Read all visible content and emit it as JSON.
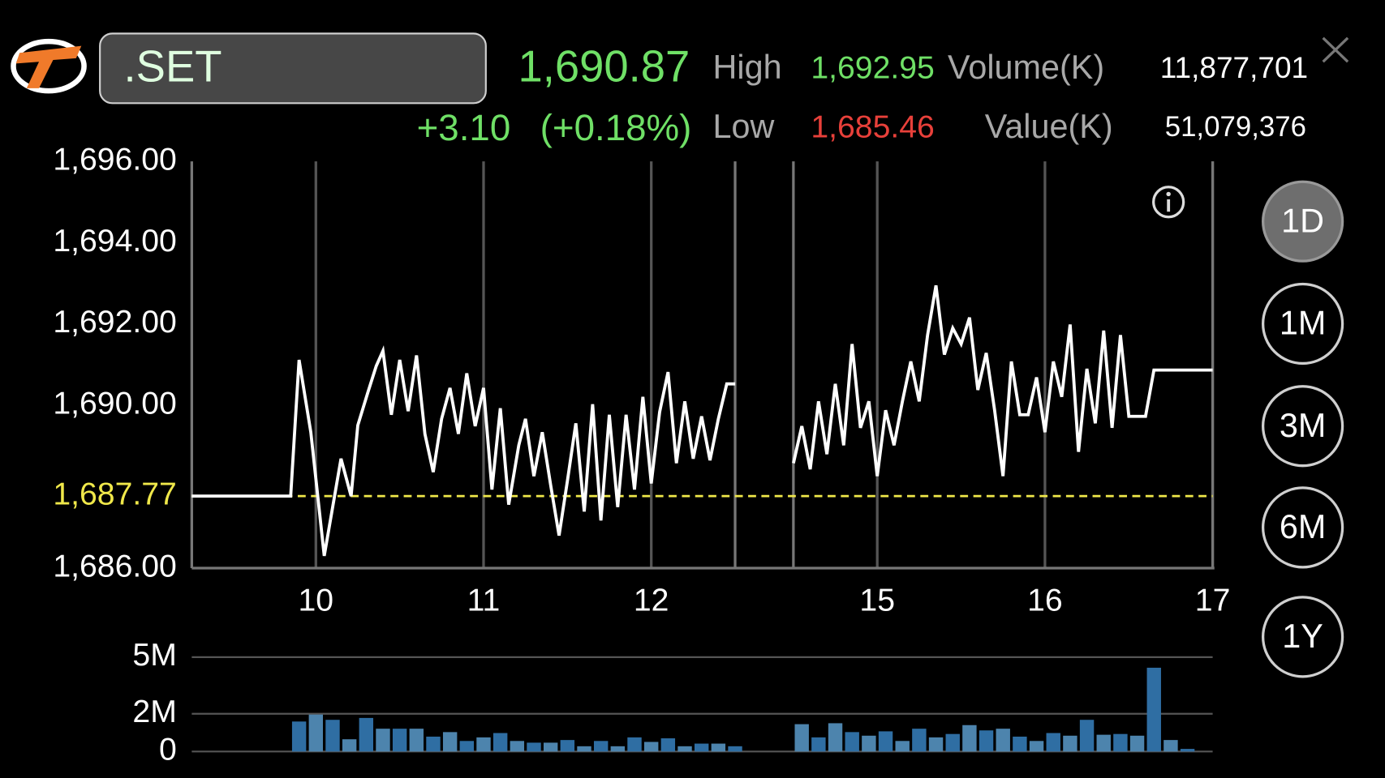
{
  "header": {
    "symbol": ".SET",
    "price": "1,690.87",
    "change": "+3.10",
    "change_pct": "(+0.18%)",
    "high_label": "High",
    "high": "1,692.95",
    "low_label": "Low",
    "low": "1,685.46",
    "volume_label": "Volume(K)",
    "volume": "11,877,701",
    "value_label": "Value(K)",
    "value": "51,079,376"
  },
  "ranges": [
    "1D",
    "1M",
    "3M",
    "6M",
    "1Y"
  ],
  "selected_range": "1D",
  "chart_data": [
    {
      "type": "line",
      "color": "#ffffff",
      "x": [
        9.26,
        9.85,
        9.9,
        9.97,
        10.05,
        10.15,
        10.21,
        10.25,
        10.31,
        10.36,
        10.4,
        10.45,
        10.5,
        10.55,
        10.6,
        10.65,
        10.7,
        10.75,
        10.8,
        10.85,
        10.9,
        10.95,
        11.0,
        11.05,
        11.1,
        11.15,
        11.21,
        11.25,
        11.3,
        11.35,
        11.4,
        11.45,
        11.5,
        11.55,
        11.6,
        11.65,
        11.7,
        11.75,
        11.8,
        11.85,
        11.9,
        11.95,
        12.0,
        12.05,
        12.1,
        12.15,
        12.2,
        12.25,
        12.3,
        12.35,
        12.4,
        12.45,
        12.5,
        null,
        14.5,
        14.55,
        14.6,
        14.65,
        14.7,
        14.75,
        14.8,
        14.85,
        14.9,
        14.95,
        15.0,
        15.05,
        15.1,
        15.15,
        15.2,
        15.25,
        15.3,
        15.35,
        15.4,
        15.45,
        15.5,
        15.55,
        15.6,
        15.65,
        15.7,
        15.75,
        15.8,
        15.85,
        15.9,
        15.95,
        16.0,
        16.05,
        16.1,
        16.15,
        16.2,
        16.25,
        16.3,
        16.35,
        16.4,
        16.45,
        16.5,
        16.6,
        16.65,
        17.0
      ],
      "values": [
        1687.77,
        1687.77,
        1691.12,
        1689.34,
        1686.3,
        1688.69,
        1687.77,
        1689.51,
        1690.32,
        1690.97,
        1691.34,
        1689.77,
        1691.12,
        1689.86,
        1691.23,
        1689.3,
        1688.36,
        1689.67,
        1690.43,
        1689.3,
        1690.79,
        1689.49,
        1690.43,
        1687.93,
        1689.93,
        1687.56,
        1689.02,
        1689.67,
        1688.26,
        1689.34,
        1688.04,
        1686.8,
        1688.15,
        1689.56,
        1687.39,
        1690.03,
        1687.17,
        1689.77,
        1687.5,
        1689.77,
        1687.93,
        1690.21,
        1688.08,
        1689.84,
        1690.82,
        1688.58,
        1690.1,
        1688.69,
        1689.73,
        1688.65,
        1689.67,
        1690.53,
        1690.53,
        null,
        1688.58,
        1689.49,
        1688.43,
        1690.1,
        1688.8,
        1690.53,
        1689.02,
        1691.51,
        1689.45,
        1690.1,
        1688.26,
        1689.88,
        1689.02,
        1690.1,
        1691.08,
        1690.1,
        1691.73,
        1692.95,
        1691.25,
        1691.9,
        1691.51,
        1692.16,
        1690.38,
        1691.29,
        1689.88,
        1688.26,
        1691.08,
        1689.77,
        1689.77,
        1690.69,
        1689.34,
        1691.08,
        1690.21,
        1691.99,
        1688.86,
        1690.9,
        1689.56,
        1691.84,
        1689.45,
        1691.73,
        1689.73,
        1689.73,
        1690.87,
        1690.87
      ],
      "xlim": [
        9.26,
        17
      ],
      "axis_break": [
        12.5,
        14.5
      ],
      "xticks": [
        10,
        11,
        12,
        15,
        16,
        17
      ],
      "ylim": [
        1686,
        1696
      ],
      "yticks": [
        {
          "value": 1686,
          "label": "1,686.00"
        },
        {
          "value": 1690,
          "label": "1,690.00"
        },
        {
          "value": 1692,
          "label": "1,692.00"
        },
        {
          "value": 1694,
          "label": "1,694.00"
        },
        {
          "value": 1696,
          "label": "1,696.00"
        }
      ],
      "reference": {
        "value": 1687.77,
        "label": "1,687.77",
        "color": "#f0e84a"
      }
    },
    {
      "type": "bar",
      "colors": [
        "#2f6ea3",
        "#4d84ad"
      ],
      "x": [
        9.9,
        10.0,
        10.1,
        10.2,
        10.3,
        10.4,
        10.5,
        10.6,
        10.7,
        10.8,
        10.9,
        11.0,
        11.1,
        11.2,
        11.3,
        11.4,
        11.5,
        11.6,
        11.7,
        11.8,
        11.9,
        12.0,
        12.1,
        12.2,
        12.3,
        12.4,
        12.5,
        14.55,
        14.65,
        14.75,
        14.85,
        14.95,
        15.05,
        15.15,
        15.25,
        15.35,
        15.45,
        15.55,
        15.65,
        15.75,
        15.85,
        15.95,
        16.05,
        16.15,
        16.25,
        16.35,
        16.45,
        16.55,
        16.65,
        16.75,
        16.85
      ],
      "values": [
        1590000,
        1960000,
        1680000,
        650000,
        1780000,
        1210000,
        1210000,
        1210000,
        790000,
        1030000,
        560000,
        750000,
        980000,
        560000,
        470000,
        470000,
        610000,
        280000,
        560000,
        280000,
        750000,
        510000,
        700000,
        280000,
        420000,
        420000,
        280000,
        1450000,
        750000,
        1500000,
        1030000,
        840000,
        1070000,
        560000,
        1210000,
        750000,
        930000,
        1400000,
        1120000,
        1210000,
        790000,
        560000,
        980000,
        840000,
        1680000,
        890000,
        930000,
        840000,
        4440000,
        610000,
        140000
      ],
      "xlim": [
        9.26,
        17
      ],
      "axis_break": [
        12.5,
        14.5
      ],
      "ylim": [
        0,
        5000000
      ],
      "yticks": [
        {
          "value": 0,
          "label": "0"
        },
        {
          "value": 2000000,
          "label": "2M"
        },
        {
          "value": 5000000,
          "label": "5M"
        }
      ],
      "grid": true
    }
  ]
}
